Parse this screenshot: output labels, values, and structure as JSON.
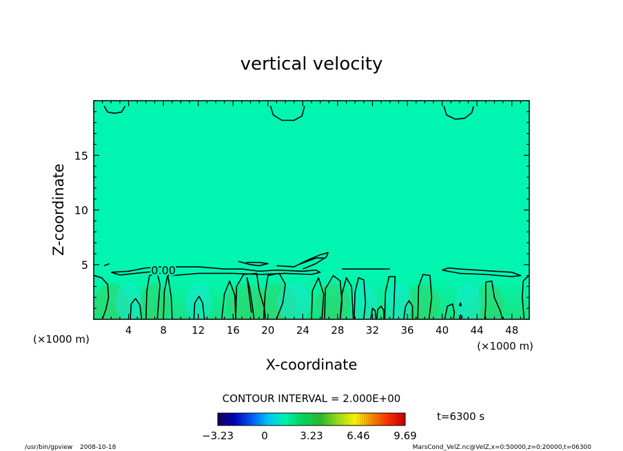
{
  "chart_data": {
    "type": "heatmap",
    "title": "vertical velocity",
    "xlabel": "X-coordinate",
    "ylabel": "Z-coordinate",
    "x_unit_label": "(×1000 m)",
    "y_unit_label": "(×1000 m)",
    "xlim": [
      0,
      50
    ],
    "ylim": [
      0,
      20
    ],
    "x_ticks": [
      4,
      8,
      12,
      16,
      20,
      24,
      28,
      32,
      36,
      40,
      44,
      48
    ],
    "y_ticks": [
      5,
      10,
      15
    ],
    "contour_interval_text": "CONTOUR INTERVAL = 2.000E+00",
    "contour_label": "0.00",
    "time_label": "t=6300 s",
    "colorbar": {
      "min": -3.23,
      "max": 9.69,
      "tick_values": [
        -3.23,
        0,
        3.23,
        6.46,
        9.69
      ],
      "tick_labels": [
        "−3.23",
        "0",
        "3.23",
        "6.46",
        "9.69"
      ],
      "colors": [
        "#1a0050",
        "#0000c8",
        "#0060ff",
        "#00d0ff",
        "#00ffb4",
        "#00e060",
        "#30c030",
        "#a0e020",
        "#ffff00",
        "#ff9000",
        "#ff3000",
        "#c80000"
      ]
    },
    "background_field_color": "#00f5b0",
    "contours": [
      {
        "level": 0,
        "points": [
          [
            1.2,
            19.5
          ],
          [
            1.6,
            18.95
          ],
          [
            2.4,
            18.85
          ],
          [
            3.2,
            18.95
          ],
          [
            3.6,
            19.5
          ]
        ]
      },
      {
        "level": 0,
        "points": [
          [
            20.3,
            19.5
          ],
          [
            20.6,
            18.7
          ],
          [
            21.6,
            18.2
          ],
          [
            23.0,
            18.2
          ],
          [
            23.9,
            18.6
          ],
          [
            24.2,
            19.5
          ]
        ]
      },
      {
        "level": 0,
        "points": [
          [
            40.2,
            19.5
          ],
          [
            40.5,
            18.7
          ],
          [
            41.5,
            18.3
          ],
          [
            42.6,
            18.4
          ],
          [
            43.4,
            18.9
          ],
          [
            43.6,
            19.5
          ]
        ]
      },
      {
        "level": 0,
        "points": [
          [
            2.0,
            4.3
          ],
          [
            4.0,
            4.4
          ],
          [
            6.0,
            4.7
          ],
          [
            8.0,
            4.8
          ],
          [
            12.0,
            4.8
          ],
          [
            15.0,
            4.6
          ],
          [
            17.0,
            4.6
          ],
          [
            19.0,
            4.4
          ],
          [
            21.0,
            4.5
          ],
          [
            24.0,
            4.4
          ],
          [
            25.5,
            4.5
          ],
          [
            26.0,
            4.3
          ],
          [
            25.0,
            4.1
          ],
          [
            22.0,
            4.2
          ],
          [
            19.0,
            4.1
          ],
          [
            16.0,
            4.2
          ],
          [
            12.0,
            4.2
          ],
          [
            9.0,
            4.0
          ],
          [
            7.5,
            4.4
          ],
          [
            6.0,
            4.3
          ],
          [
            3.0,
            4.05
          ],
          [
            2.0,
            4.3
          ]
        ]
      },
      {
        "level": 0,
        "points": [
          [
            1.2,
            4.9
          ],
          [
            1.8,
            5.1
          ]
        ]
      },
      {
        "level": 0,
        "points": [
          [
            16.6,
            5.3
          ],
          [
            18.0,
            5.0
          ],
          [
            19.0,
            4.9
          ],
          [
            20.0,
            5.1
          ],
          [
            19.0,
            5.2
          ],
          [
            17.5,
            5.2
          ]
        ]
      },
      {
        "level": 0,
        "points": [
          [
            21.0,
            4.9
          ],
          [
            23.0,
            4.8
          ],
          [
            24.5,
            5.4
          ],
          [
            26.0,
            5.9
          ],
          [
            26.9,
            6.1
          ],
          [
            26.7,
            5.7
          ],
          [
            25.5,
            5.1
          ],
          [
            24.0,
            4.6
          ]
        ]
      },
      {
        "level": 0,
        "points": [
          [
            23.5,
            5.0
          ],
          [
            25.5,
            5.6
          ],
          [
            26.4,
            5.6
          ]
        ]
      },
      {
        "level": 0,
        "points": [
          [
            28.5,
            4.6
          ],
          [
            31.0,
            4.6
          ],
          [
            33.0,
            4.6
          ],
          [
            34.0,
            4.6
          ]
        ]
      },
      {
        "level": 0,
        "points": [
          [
            40.0,
            4.5
          ],
          [
            40.7,
            4.7
          ],
          [
            42.0,
            4.6
          ],
          [
            44.0,
            4.5
          ],
          [
            46.0,
            4.4
          ],
          [
            48.0,
            4.3
          ],
          [
            49.0,
            4.0
          ],
          [
            48.0,
            3.9
          ],
          [
            45.0,
            4.1
          ],
          [
            42.0,
            4.2
          ],
          [
            40.0,
            4.5
          ]
        ]
      },
      {
        "level": 0,
        "points": [
          [
            0.05,
            4.0
          ],
          [
            0.9,
            3.8
          ],
          [
            1.6,
            3.2
          ],
          [
            1.7,
            2.0
          ],
          [
            1.4,
            0.9
          ],
          [
            1.0,
            0.05
          ]
        ]
      },
      {
        "level": 0,
        "points": [
          [
            4.2,
            0.05
          ],
          [
            4.3,
            1.4
          ],
          [
            4.8,
            1.9
          ],
          [
            5.3,
            1.3
          ],
          [
            5.5,
            0.05
          ]
        ]
      },
      {
        "level": 0,
        "points": [
          [
            6.0,
            0.05
          ],
          [
            6.1,
            2.6
          ],
          [
            6.4,
            4.0
          ],
          [
            7.3,
            4.2
          ],
          [
            7.6,
            3.2
          ],
          [
            7.3,
            0.05
          ]
        ]
      },
      {
        "level": 0,
        "points": [
          [
            8.0,
            0.05
          ],
          [
            8.1,
            2.5
          ],
          [
            8.5,
            4.1
          ],
          [
            8.9,
            2.0
          ],
          [
            9.0,
            0.05
          ]
        ]
      },
      {
        "level": 0,
        "points": [
          [
            11.5,
            0.05
          ],
          [
            11.6,
            1.5
          ],
          [
            12.1,
            2.1
          ],
          [
            12.5,
            1.5
          ],
          [
            12.7,
            0.05
          ]
        ]
      },
      {
        "level": 0,
        "points": [
          [
            14.7,
            0.05
          ],
          [
            15.0,
            2.3
          ],
          [
            15.6,
            3.5
          ],
          [
            16.2,
            2.2
          ],
          [
            16.3,
            0.05
          ]
        ]
      },
      {
        "level": 0,
        "points": [
          [
            16.3,
            0.05
          ],
          [
            16.4,
            3.0
          ],
          [
            17.2,
            4.1
          ],
          [
            18.7,
            4.2
          ],
          [
            19.0,
            2.6
          ],
          [
            19.6,
            1.0
          ],
          [
            19.7,
            0.05
          ]
        ]
      },
      {
        "level": 0,
        "points": [
          [
            18.4,
            0.05
          ],
          [
            18.2,
            1.3
          ],
          [
            17.9,
            2.8
          ],
          [
            17.6,
            3.8
          ],
          [
            18.1,
            0.6
          ]
        ]
      },
      {
        "level": 0,
        "points": [
          [
            19.5,
            0.05
          ],
          [
            19.7,
            2.5
          ],
          [
            20.0,
            4.0
          ],
          [
            21.3,
            4.2
          ],
          [
            22.0,
            3.2
          ],
          [
            21.7,
            1.5
          ],
          [
            21.0,
            0.05
          ]
        ]
      },
      {
        "level": 0,
        "points": [
          [
            25.0,
            0.05
          ],
          [
            25.1,
            2.6
          ],
          [
            25.8,
            3.8
          ],
          [
            26.4,
            2.3
          ],
          [
            26.2,
            0.05
          ]
        ]
      },
      {
        "level": 0,
        "points": [
          [
            26.5,
            0.05
          ],
          [
            26.6,
            2.8
          ],
          [
            27.5,
            4.0
          ],
          [
            28.3,
            3.5
          ],
          [
            28.5,
            1.5
          ],
          [
            28.3,
            0.05
          ]
        ]
      },
      {
        "level": 0,
        "points": [
          [
            28.3,
            0.05
          ],
          [
            28.5,
            2.3
          ],
          [
            29.0,
            3.8
          ],
          [
            29.6,
            3.0
          ],
          [
            29.8,
            0.05
          ]
        ]
      },
      {
        "level": 0,
        "points": [
          [
            29.9,
            0.05
          ],
          [
            30.0,
            2.5
          ],
          [
            30.4,
            3.8
          ],
          [
            31.0,
            3.6
          ],
          [
            31.2,
            1.5
          ],
          [
            31.0,
            0.05
          ]
        ]
      },
      {
        "level": 0,
        "points": [
          [
            31.8,
            0.05
          ],
          [
            32.0,
            1.0
          ],
          [
            32.3,
            0.8
          ],
          [
            32.4,
            0.05
          ]
        ]
      },
      {
        "level": 0,
        "points": [
          [
            32.5,
            0.05
          ],
          [
            32.6,
            0.9
          ],
          [
            33.0,
            1.2
          ],
          [
            33.3,
            0.8
          ],
          [
            33.3,
            0.05
          ]
        ]
      },
      {
        "level": 0,
        "points": [
          [
            33.4,
            0.05
          ],
          [
            33.5,
            2.5
          ],
          [
            33.9,
            3.9
          ],
          [
            34.6,
            3.9
          ],
          [
            34.5,
            2.0
          ],
          [
            34.4,
            0.05
          ]
        ]
      },
      {
        "level": 0,
        "points": [
          [
            35.6,
            0.05
          ],
          [
            35.8,
            1.2
          ],
          [
            36.2,
            1.7
          ],
          [
            36.6,
            1.2
          ],
          [
            36.6,
            0.05
          ]
        ]
      },
      {
        "level": 0,
        "points": [
          [
            37.2,
            0.05
          ],
          [
            37.3,
            3.0
          ],
          [
            37.8,
            4.1
          ],
          [
            38.6,
            4.0
          ],
          [
            38.8,
            2.0
          ],
          [
            38.5,
            0.05
          ]
        ]
      },
      {
        "level": 0,
        "points": [
          [
            40.3,
            0.05
          ],
          [
            40.6,
            1.2
          ],
          [
            41.2,
            1.4
          ],
          [
            41.4,
            0.6
          ],
          [
            41.3,
            0.05
          ]
        ]
      },
      {
        "level": 0,
        "points": [
          [
            42.0,
            0.2
          ],
          [
            42.1,
            0.4
          ],
          [
            42.3,
            0.2
          ],
          [
            42.1,
            0.05
          ],
          [
            42.0,
            0.2
          ]
        ]
      },
      {
        "level": 0,
        "points": [
          [
            42.0,
            1.2
          ],
          [
            42.1,
            1.5
          ],
          [
            42.2,
            1.2
          ]
        ]
      },
      {
        "level": 0,
        "points": [
          [
            44.9,
            0.05
          ],
          [
            45.0,
            1.2
          ],
          [
            45.0,
            3.4
          ],
          [
            45.7,
            3.5
          ],
          [
            46.0,
            2.0
          ],
          [
            46.7,
            0.7
          ],
          [
            46.9,
            0.05
          ]
        ]
      },
      {
        "level": 0,
        "points": [
          [
            49.95,
            4.0
          ],
          [
            49.3,
            3.5
          ],
          [
            49.2,
            2.0
          ],
          [
            49.4,
            0.05
          ]
        ]
      }
    ],
    "grid": false,
    "legend": "bottom-center colorbar"
  },
  "footer": {
    "program": "/usr/bin/gpview",
    "date": "2008-10-18",
    "source": "MarsCond_VelZ.nc@VelZ,x=0:50000,z=0:20000,t=06300"
  }
}
